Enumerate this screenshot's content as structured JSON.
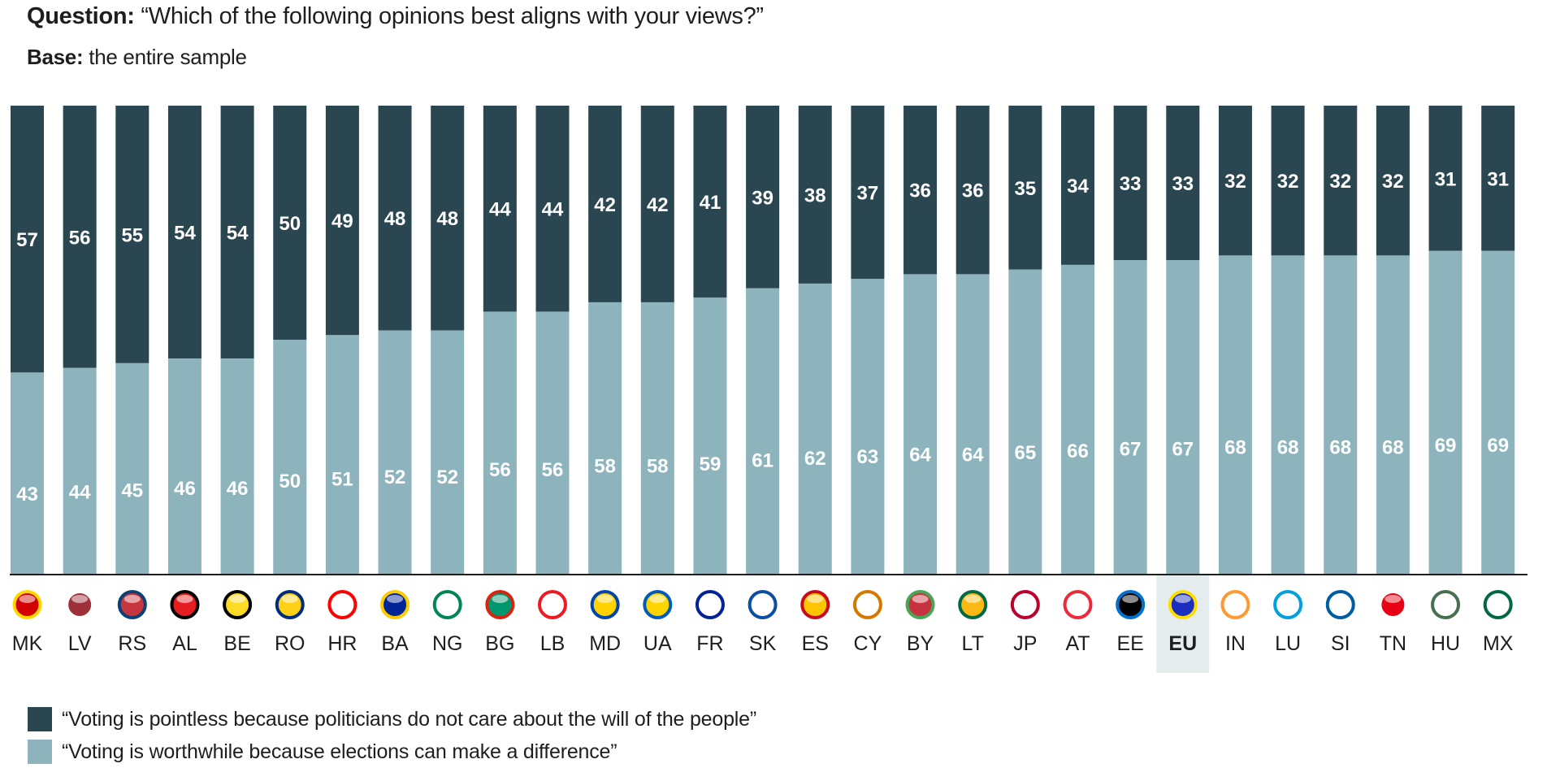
{
  "header": {
    "question_label": "Question:",
    "question_text": "“Which of the following opinions best aligns with your views?”",
    "base_label": "Base:",
    "base_text": "the entire sample"
  },
  "colors": {
    "pointless": "#2a4651",
    "worthwhile": "#8db4bd",
    "highlight": "#e4eced",
    "axis": "#1e1e1e",
    "label": "#ffffff"
  },
  "chart_data": {
    "type": "bar",
    "stacked": true,
    "title": "“Which of the following opinions best aligns with your views?”",
    "subtitle": "Base: the entire sample",
    "xlabel": "",
    "ylabel": "",
    "ylim": [
      0,
      100
    ],
    "grid": false,
    "legend_position": "bottom-left",
    "highlighted_category": "EU",
    "categories": [
      "MK",
      "LV",
      "RS",
      "AL",
      "BE",
      "RO",
      "HR",
      "BA",
      "NG",
      "BG",
      "LB",
      "MD",
      "UA",
      "FR",
      "SK",
      "ES",
      "CY",
      "BY",
      "LT",
      "JP",
      "AT",
      "EE",
      "EU",
      "IN",
      "LU",
      "SI",
      "TN",
      "HU",
      "MX"
    ],
    "flag_icons": [
      "north-macedonia-flag-icon",
      "latvia-flag-icon",
      "serbia-flag-icon",
      "albania-flag-icon",
      "belgium-flag-icon",
      "romania-flag-icon",
      "croatia-flag-icon",
      "bosnia-flag-icon",
      "nigeria-flag-icon",
      "bulgaria-flag-icon",
      "lebanon-flag-icon",
      "moldova-flag-icon",
      "ukraine-flag-icon",
      "france-flag-icon",
      "slovakia-flag-icon",
      "spain-flag-icon",
      "cyprus-flag-icon",
      "belarus-flag-icon",
      "lithuania-flag-icon",
      "japan-flag-icon",
      "austria-flag-icon",
      "estonia-flag-icon",
      "eu-flag-icon",
      "india-flag-icon",
      "luxembourg-flag-icon",
      "slovenia-flag-icon",
      "tunisia-flag-icon",
      "hungary-flag-icon",
      "mexico-flag-icon"
    ],
    "series": [
      {
        "name": "“Voting is worthwhile because elections can make a difference”",
        "key": "worthwhile",
        "values": [
          43,
          44,
          45,
          46,
          46,
          50,
          51,
          52,
          52,
          56,
          56,
          58,
          58,
          59,
          61,
          62,
          63,
          64,
          64,
          65,
          66,
          67,
          67,
          68,
          68,
          68,
          68,
          69,
          69
        ]
      },
      {
        "name": "“Voting is pointless because politicians do not care about the will of the people”",
        "key": "pointless",
        "values": [
          57,
          56,
          55,
          54,
          54,
          50,
          49,
          48,
          48,
          44,
          44,
          42,
          42,
          41,
          39,
          38,
          37,
          36,
          36,
          35,
          34,
          33,
          33,
          32,
          32,
          32,
          32,
          31,
          31
        ]
      }
    ]
  },
  "legend": {
    "items": [
      {
        "label": "“Voting is pointless because politicians do not care about the will of the people”"
      },
      {
        "label": "“Voting is worthwhile because elections can make a difference”"
      }
    ]
  }
}
